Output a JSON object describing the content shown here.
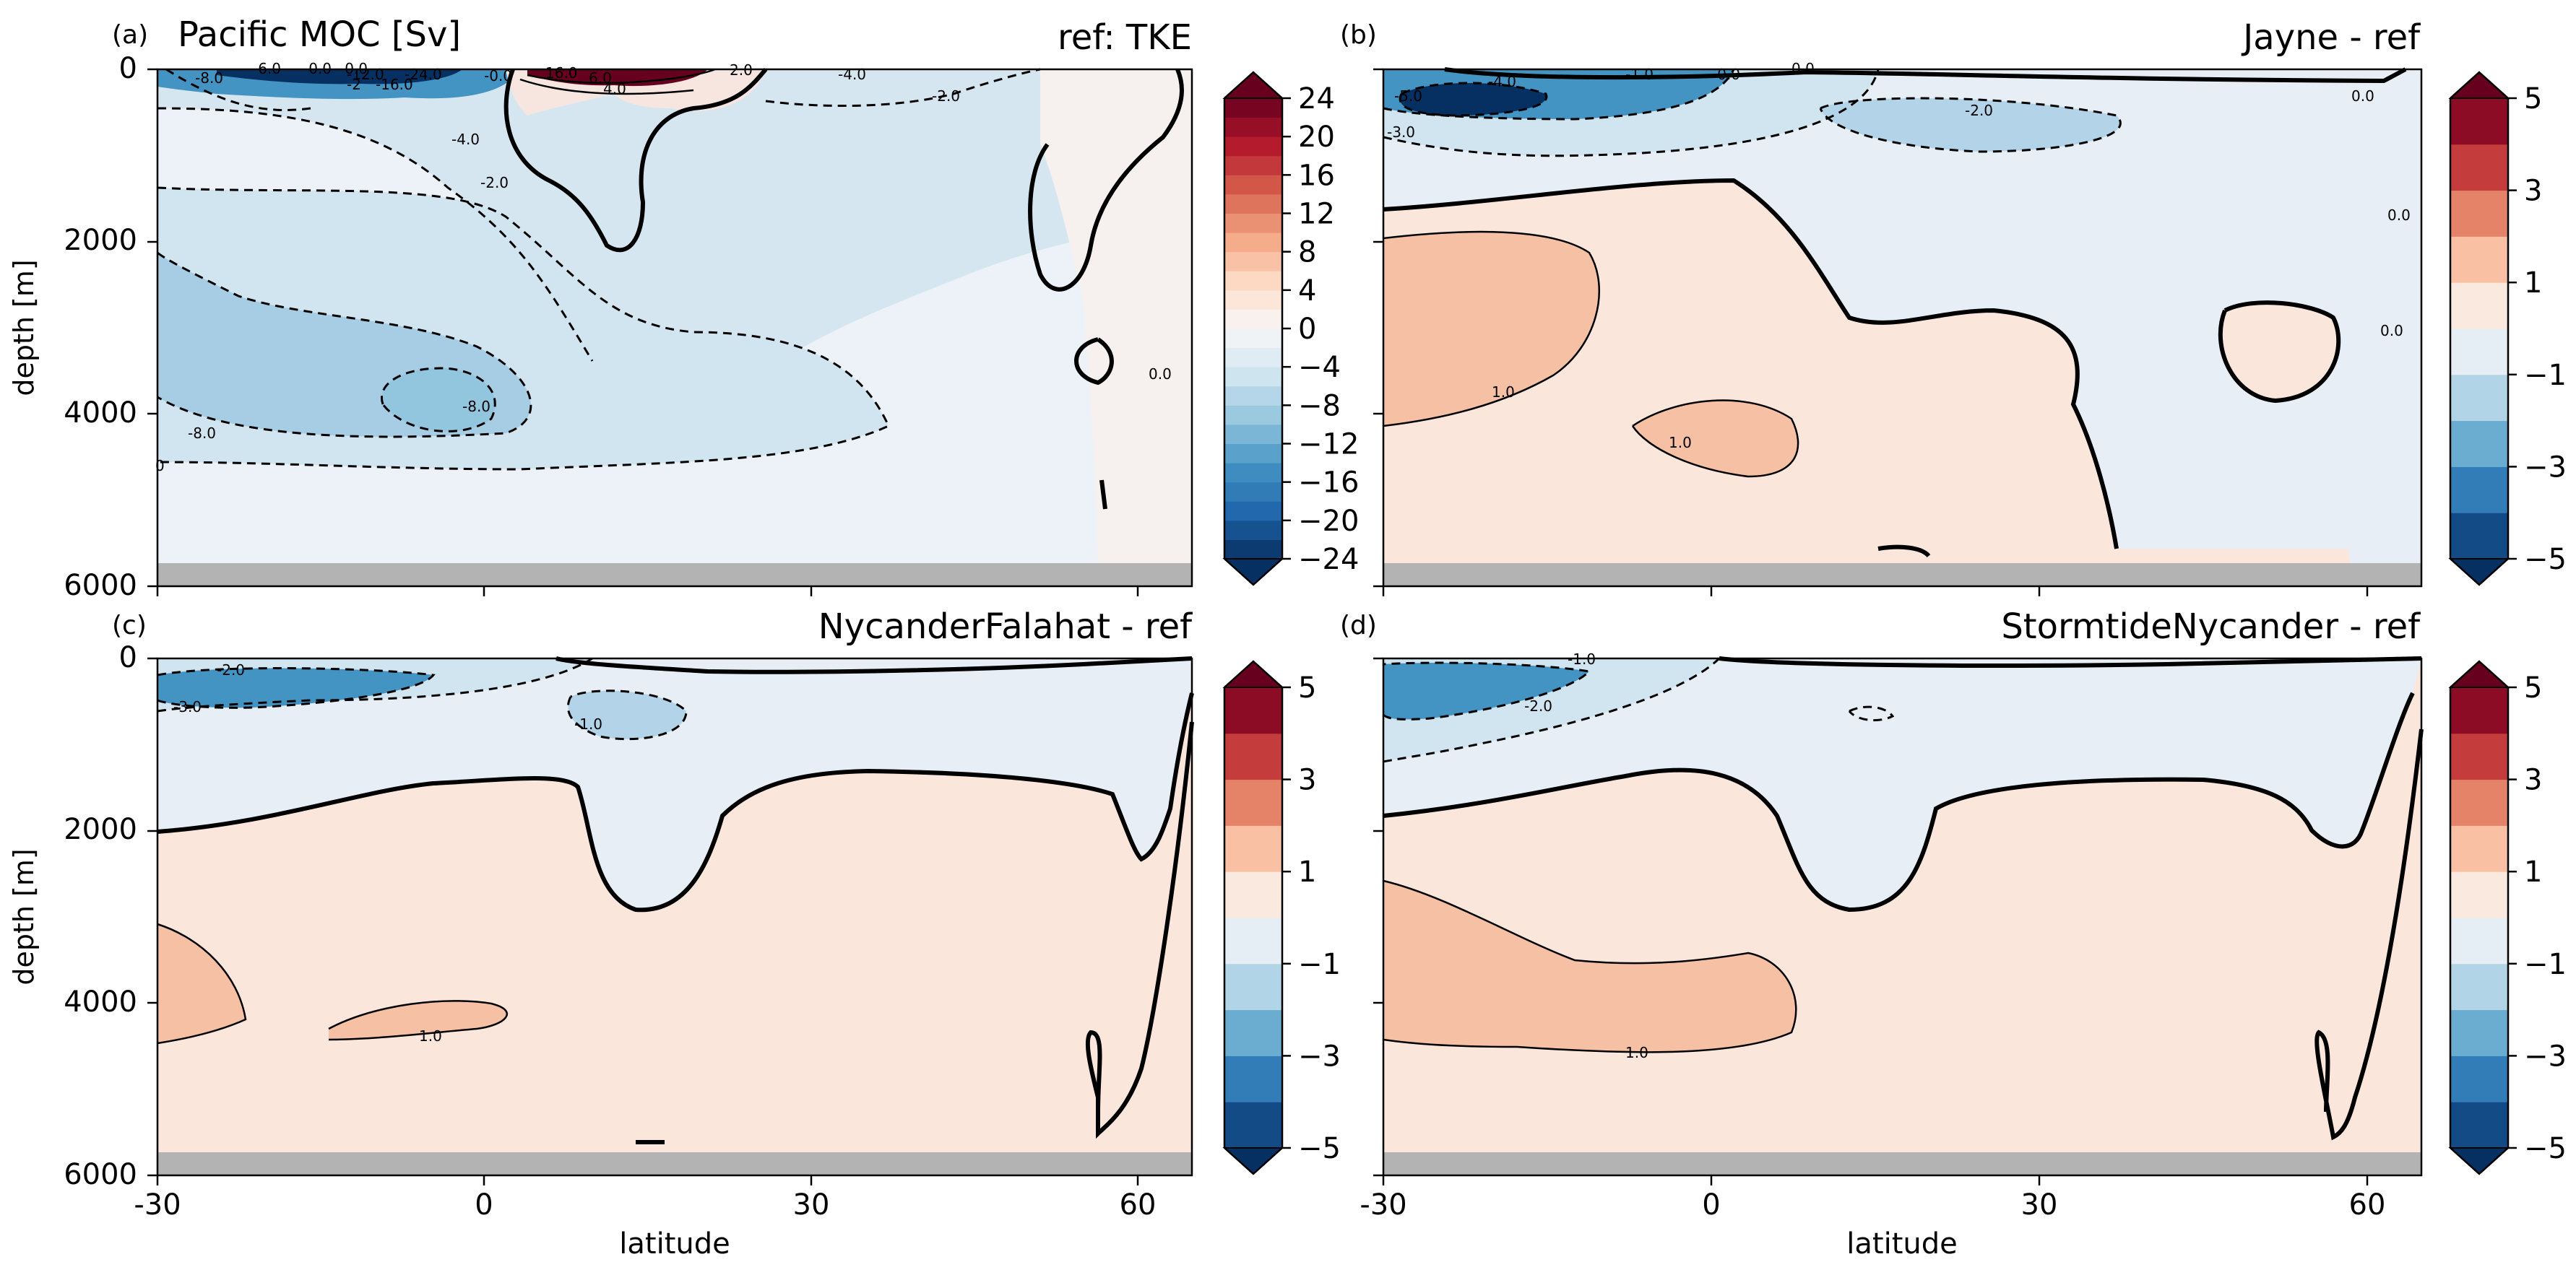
{
  "figure": {
    "suptitle": "Pacific MOC [Sv]",
    "xlabel": "latitude",
    "ylabel": "depth [m]"
  },
  "colors": {
    "strong_negative": "#053061",
    "negative_mid": "#4393c3",
    "near_zero_negative": "#e8eff6",
    "near_zero_positive": "#fbe8e0",
    "positive_mid": "#f4a582",
    "strong_positive": "#67001f",
    "seafloor_mask": "#b3b3b3",
    "contour_line": "#000000"
  },
  "chart_data": [
    {
      "type": "heatmap",
      "panel_label": "(a)",
      "title": "ref: TKE",
      "xlim": [
        -30,
        65
      ],
      "ylim": [
        6000,
        0
      ],
      "x_ticks": [
        -30,
        0,
        30,
        60
      ],
      "y_ticks": [
        0,
        2000,
        4000,
        6000
      ],
      "colorbar": {
        "ticks": [
          24,
          20,
          16,
          12,
          8,
          4,
          0,
          -4,
          -8,
          -12,
          -16,
          -20,
          -24
        ],
        "levels": [
          -24,
          -22,
          -20,
          -18,
          -16,
          -14,
          -12,
          -10,
          -8,
          -6,
          -4,
          -2,
          0,
          2,
          4,
          6,
          8,
          10,
          12,
          14,
          16,
          18,
          20,
          22,
          24
        ],
        "extend": "both",
        "cmap": "RdBu_r"
      },
      "contour_labels": [
        "-8.0",
        "-6.0",
        "-0.0",
        "-0.0",
        "-12.0",
        "-2",
        "-16.0",
        "-24.0",
        "16.0",
        "6.0",
        "4.0",
        "2.0",
        "-4.0",
        "-2.0",
        "-0.0",
        "-4.0",
        "-2.0",
        "-8.0",
        "-8.0",
        "0.0",
        "0"
      ],
      "fields": {
        "upper_cell_min_sv": -24,
        "upper_cell_max_sv": 24,
        "deep_cell_min_sv": -8,
        "bottom_mask_depth_m": 5720
      }
    },
    {
      "type": "heatmap",
      "panel_label": "(b)",
      "title": "Jayne - ref",
      "xlim": [
        -30,
        65
      ],
      "ylim": [
        6000,
        0
      ],
      "x_ticks": [
        -30,
        0,
        30,
        60
      ],
      "y_ticks": [
        0,
        2000,
        4000,
        6000
      ],
      "colorbar": {
        "ticks": [
          5,
          3,
          1,
          -1,
          -3,
          -5
        ],
        "levels": [
          -5,
          -4,
          -3,
          -2,
          -1,
          0,
          1,
          2,
          3,
          4,
          5
        ],
        "extend": "both",
        "cmap": "RdBu_r"
      },
      "contour_labels": [
        "-5.0",
        "-4.0",
        "-3.0",
        "-1.0",
        "-0.0",
        "0.0",
        "-2.0",
        "0.0",
        "0.0",
        "1.0",
        "1.0",
        "0.0"
      ],
      "fields": {
        "min_difference_sv": -5,
        "max_difference_sv": 1,
        "bottom_mask_depth_m": 5720
      }
    },
    {
      "type": "heatmap",
      "panel_label": "(c)",
      "title": "NycanderFalahat - ref",
      "xlim": [
        -30,
        65
      ],
      "ylim": [
        6000,
        0
      ],
      "x_ticks": [
        -30,
        0,
        30,
        60
      ],
      "y_ticks": [
        0,
        2000,
        4000,
        6000
      ],
      "colorbar": {
        "ticks": [
          5,
          3,
          1,
          -1,
          -3,
          -5
        ],
        "levels": [
          -5,
          -4,
          -3,
          -2,
          -1,
          0,
          1,
          2,
          3,
          4,
          5
        ],
        "extend": "both",
        "cmap": "RdBu_r"
      },
      "contour_labels": [
        "-2.0",
        "-3.0",
        "-1.0",
        "1.0"
      ],
      "fields": {
        "min_difference_sv": -3,
        "max_difference_sv": 1,
        "bottom_mask_depth_m": 5720
      }
    },
    {
      "type": "heatmap",
      "panel_label": "(d)",
      "title": "StormtideNycander - ref",
      "xlim": [
        -30,
        65
      ],
      "ylim": [
        6000,
        0
      ],
      "x_ticks": [
        -30,
        0,
        30,
        60
      ],
      "y_ticks": [
        0,
        2000,
        4000,
        6000
      ],
      "colorbar": {
        "ticks": [
          5,
          3,
          1,
          -1,
          -3,
          -5
        ],
        "levels": [
          -5,
          -4,
          -3,
          -2,
          -1,
          0,
          1,
          2,
          3,
          4,
          5
        ],
        "extend": "both",
        "cmap": "RdBu_r"
      },
      "contour_labels": [
        "-1.0",
        "-2.0",
        "1.0"
      ],
      "fields": {
        "min_difference_sv": -2,
        "max_difference_sv": 1,
        "bottom_mask_depth_m": 5720
      }
    }
  ]
}
